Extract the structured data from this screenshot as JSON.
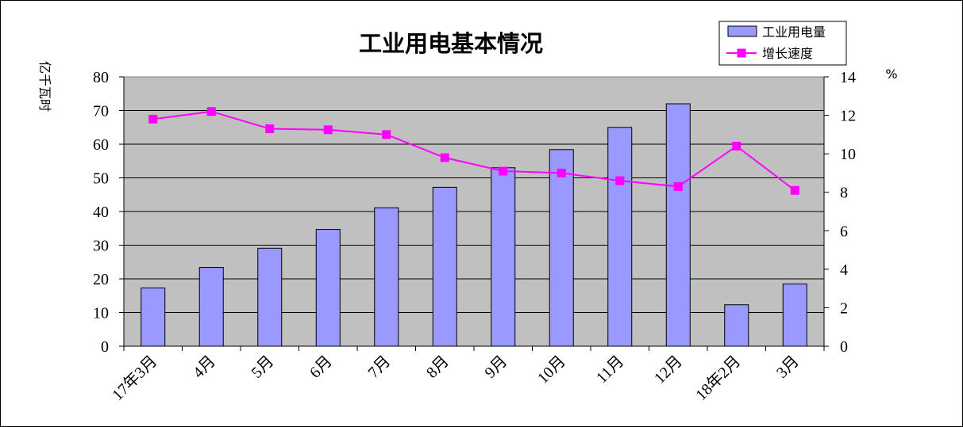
{
  "chart_data": {
    "type": "bar",
    "title": "工业用电基本情况",
    "categories": [
      "17年3月",
      "4月",
      "5月",
      "6月",
      "7月",
      "8月",
      "9月",
      "10月",
      "11月",
      "12月",
      "18年2月",
      "3月"
    ],
    "series": [
      {
        "name": "工业用电量",
        "type": "bar",
        "axis": "left",
        "color": "#9999FF",
        "values": [
          17.3,
          23.4,
          29.1,
          34.7,
          41.1,
          47.2,
          53.0,
          58.4,
          65.0,
          72.0,
          12.3,
          18.5
        ]
      },
      {
        "name": "增长速度",
        "type": "line",
        "axis": "right",
        "color": "#FF00FF",
        "values": [
          11.8,
          12.2,
          11.3,
          11.25,
          11.0,
          9.8,
          9.1,
          9.0,
          8.6,
          8.3,
          10.4,
          8.1
        ]
      }
    ],
    "ylabel": "亿千瓦时",
    "ylim": [
      0,
      80
    ],
    "yticks": [
      0,
      10,
      20,
      30,
      40,
      50,
      60,
      70,
      80
    ],
    "y2label": "%",
    "y2lim": [
      0,
      14
    ],
    "y2ticks": [
      0,
      2,
      4,
      6,
      8,
      10,
      12,
      14
    ],
    "grid": true,
    "plot_background": "#C0C0C0",
    "legend_position": "top-right"
  }
}
